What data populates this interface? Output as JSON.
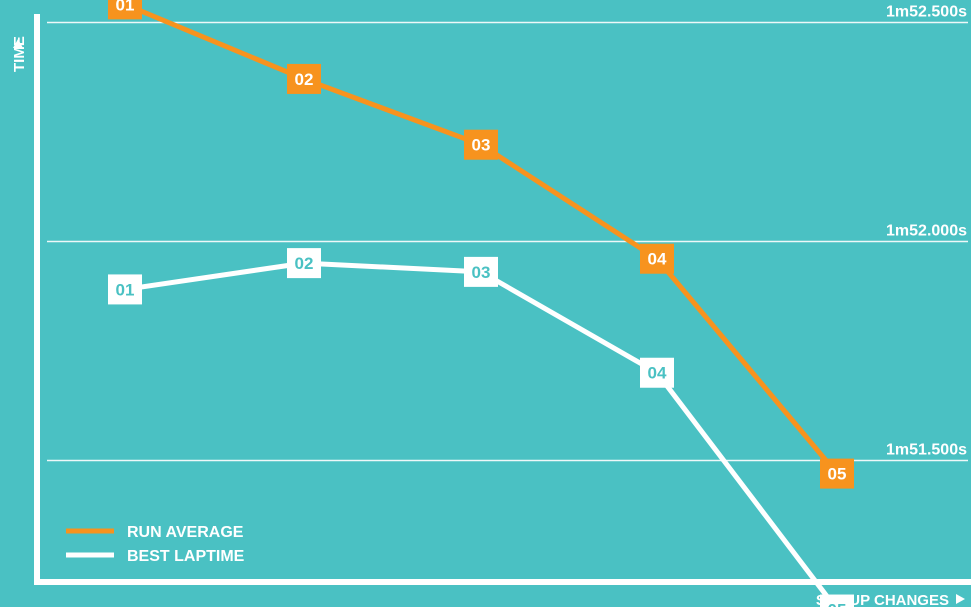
{
  "colors": {
    "background": "#4ac1c3",
    "axis": "#ffffff",
    "gridline": "#ffffff",
    "run_average": "#f7931e",
    "best_laptime": "#ffffff",
    "best_label_text": "#4ac1c3",
    "run_label_text": "#ffffff"
  },
  "chart_data": {
    "type": "line",
    "xlabel": "SET-UP CHANGES",
    "ylabel": "TIME",
    "x": [
      "01",
      "02",
      "03",
      "04",
      "05"
    ],
    "ylim": [
      111.2,
      112.55
    ],
    "gridlines": [
      {
        "value": 112.5,
        "label": "1m52.500s"
      },
      {
        "value": 112.0,
        "label": "1m52.000s"
      },
      {
        "value": 111.5,
        "label": "1m51.500s"
      }
    ],
    "grid": true,
    "legend": "bottom-left",
    "series": [
      {
        "name": "RUN AVERAGE",
        "values": [
          112.54,
          112.37,
          112.22,
          111.96,
          111.47
        ]
      },
      {
        "name": "BEST LAPTIME",
        "values": [
          111.89,
          111.95,
          111.93,
          111.7,
          111.16
        ]
      }
    ]
  }
}
